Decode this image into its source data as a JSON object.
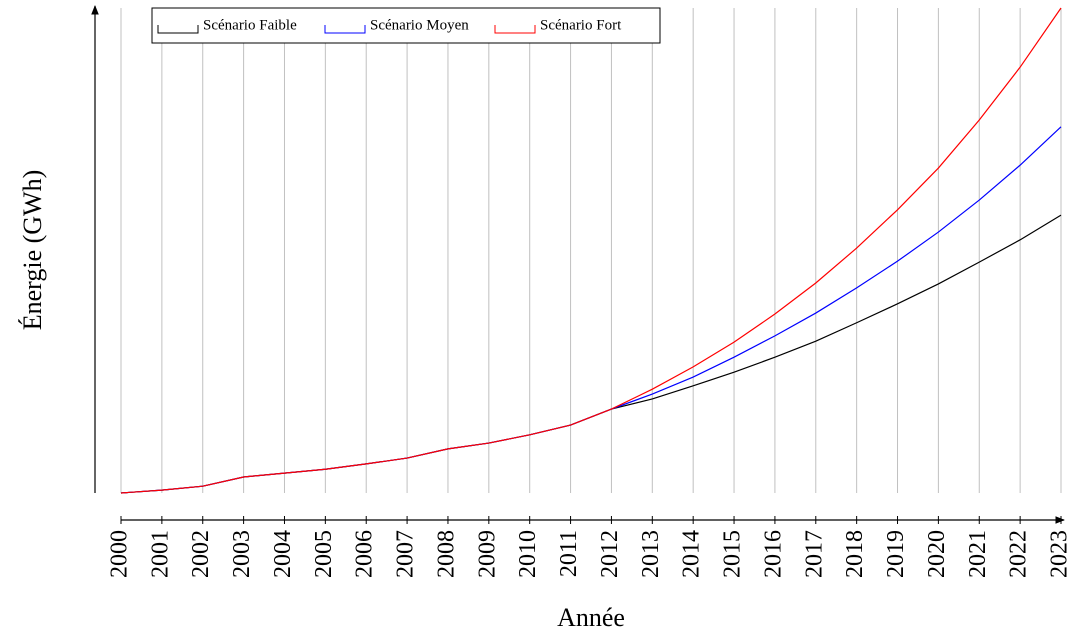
{
  "chart_data": {
    "type": "line",
    "x_label": "Année",
    "y_label": "Énergie (GWh)",
    "x": [
      2000,
      2001,
      2002,
      2003,
      2004,
      2005,
      2006,
      2007,
      2008,
      2009,
      2010,
      2011,
      2012,
      2013,
      2014,
      2015,
      2016,
      2017,
      2018,
      2019,
      2020,
      2021,
      2022,
      2023
    ],
    "xlim": [
      2000,
      2023
    ],
    "xticks": [
      2000,
      2001,
      2002,
      2003,
      2004,
      2005,
      2006,
      2007,
      2008,
      2009,
      2010,
      2011,
      2012,
      2013,
      2014,
      2015,
      2016,
      2017,
      2018,
      2019,
      2020,
      2021,
      2022,
      2023
    ],
    "ylim": [
      0,
      100
    ],
    "grid": true,
    "legend": "top",
    "series": [
      {
        "name": "Scénario Faible",
        "color": "#000000",
        "values": [
          0,
          0.6,
          1.4,
          3.3,
          4.1,
          4.9,
          6.0,
          7.2,
          9.1,
          10.3,
          12.0,
          14.0,
          17.3,
          19.4,
          22.1,
          24.9,
          28.0,
          31.3,
          35.1,
          39.0,
          43.1,
          47.6,
          52.2,
          57.3
        ]
      },
      {
        "name": "Scénario Moyen",
        "color": "#0000ff",
        "values": [
          0,
          0.6,
          1.4,
          3.3,
          4.1,
          4.9,
          6.0,
          7.2,
          9.1,
          10.3,
          12.0,
          14.0,
          17.3,
          20.4,
          23.9,
          28.0,
          32.4,
          37.1,
          42.3,
          47.8,
          53.8,
          60.4,
          67.6,
          75.5
        ]
      },
      {
        "name": "Scénario Fort",
        "color": "#ff0000",
        "values": [
          0,
          0.6,
          1.4,
          3.3,
          4.1,
          4.9,
          6.0,
          7.2,
          9.1,
          10.3,
          12.0,
          14.0,
          17.3,
          21.4,
          26.0,
          31.1,
          36.9,
          43.3,
          50.5,
          58.4,
          67.0,
          76.9,
          87.8,
          100
        ]
      }
    ]
  }
}
